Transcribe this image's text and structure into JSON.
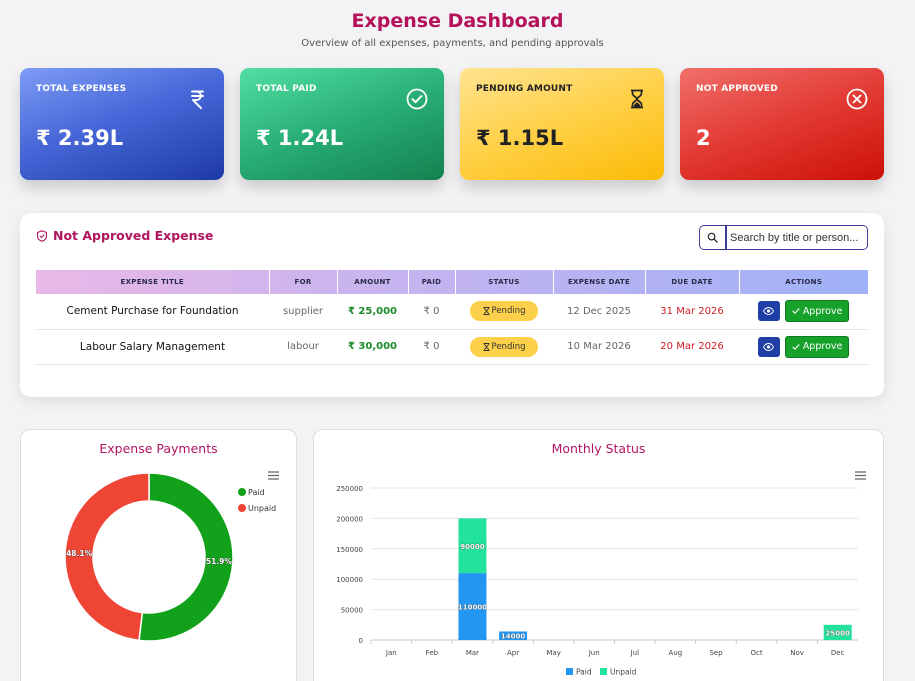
{
  "header": {
    "title": "Expense Dashboard",
    "subtitle": "Overview of all expenses, payments, and pending approvals"
  },
  "cards": [
    {
      "label": "TOTAL EXPENSES",
      "value": "₹ 2.39L",
      "icon": "rupee-icon"
    },
    {
      "label": "TOTAL PAID",
      "value": "₹ 1.24L",
      "icon": "check-circle-icon"
    },
    {
      "label": "PENDING AMOUNT",
      "value": "₹ 1.15L",
      "icon": "hourglass-icon"
    },
    {
      "label": "NOT APPROVED",
      "value": "2",
      "icon": "x-circle-icon"
    }
  ],
  "not_approved": {
    "title": "Not Approved Expense",
    "search_placeholder": "Search by title or person...",
    "columns": [
      "EXPENSE TITLE",
      "FOR",
      "AMOUNT",
      "PAID",
      "STATUS",
      "EXPENSE DATE",
      "DUE DATE",
      "ACTIONS"
    ],
    "rows": [
      {
        "title": "Cement Purchase for Foundation",
        "for": "supplier",
        "amount": "₹ 25,000",
        "paid": "₹ 0",
        "status": "Pending",
        "expense_date": "12 Dec 2025",
        "due_date": "31 Mar 2026",
        "approve_label": "Approve"
      },
      {
        "title": "Labour Salary Management",
        "for": "labour",
        "amount": "₹ 30,000",
        "paid": "₹ 0",
        "status": "Pending",
        "expense_date": "10 Mar 2026",
        "due_date": "20 Mar 2026",
        "approve_label": "Approve"
      }
    ]
  },
  "colors": {
    "accent": "#b5105a",
    "paid": "#11a11a",
    "unpaid": "#ee4535",
    "bar_paid": "#2196f3",
    "bar_unpaid": "#23e29b"
  },
  "expense_payments": {
    "title": "Expense Payments",
    "chart_data": {
      "type": "pie",
      "labels": [
        "Paid",
        "Unpaid"
      ],
      "values": [
        51.9,
        48.1
      ],
      "data_labels": [
        "51.9%",
        "48.1%"
      ],
      "legend": "top-right"
    }
  },
  "monthly_status": {
    "title": "Monthly Status",
    "chart_data": {
      "type": "bar",
      "stacked": true,
      "categories": [
        "Jan",
        "Feb",
        "Mar",
        "Apr",
        "May",
        "Jun",
        "Jul",
        "Aug",
        "Sep",
        "Oct",
        "Nov",
        "Dec"
      ],
      "series": [
        {
          "name": "Paid",
          "values": [
            0,
            0,
            110000,
            14000,
            0,
            0,
            0,
            0,
            0,
            0,
            0,
            0
          ]
        },
        {
          "name": "Unpaid",
          "values": [
            0,
            0,
            90000,
            0,
            0,
            0,
            0,
            0,
            0,
            0,
            0,
            25000
          ]
        }
      ],
      "yticks": [
        "0",
        "50000",
        "100000",
        "150000",
        "200000",
        "250000"
      ],
      "ylim": [
        0,
        250000
      ],
      "grid": true,
      "legend": "bottom"
    }
  }
}
